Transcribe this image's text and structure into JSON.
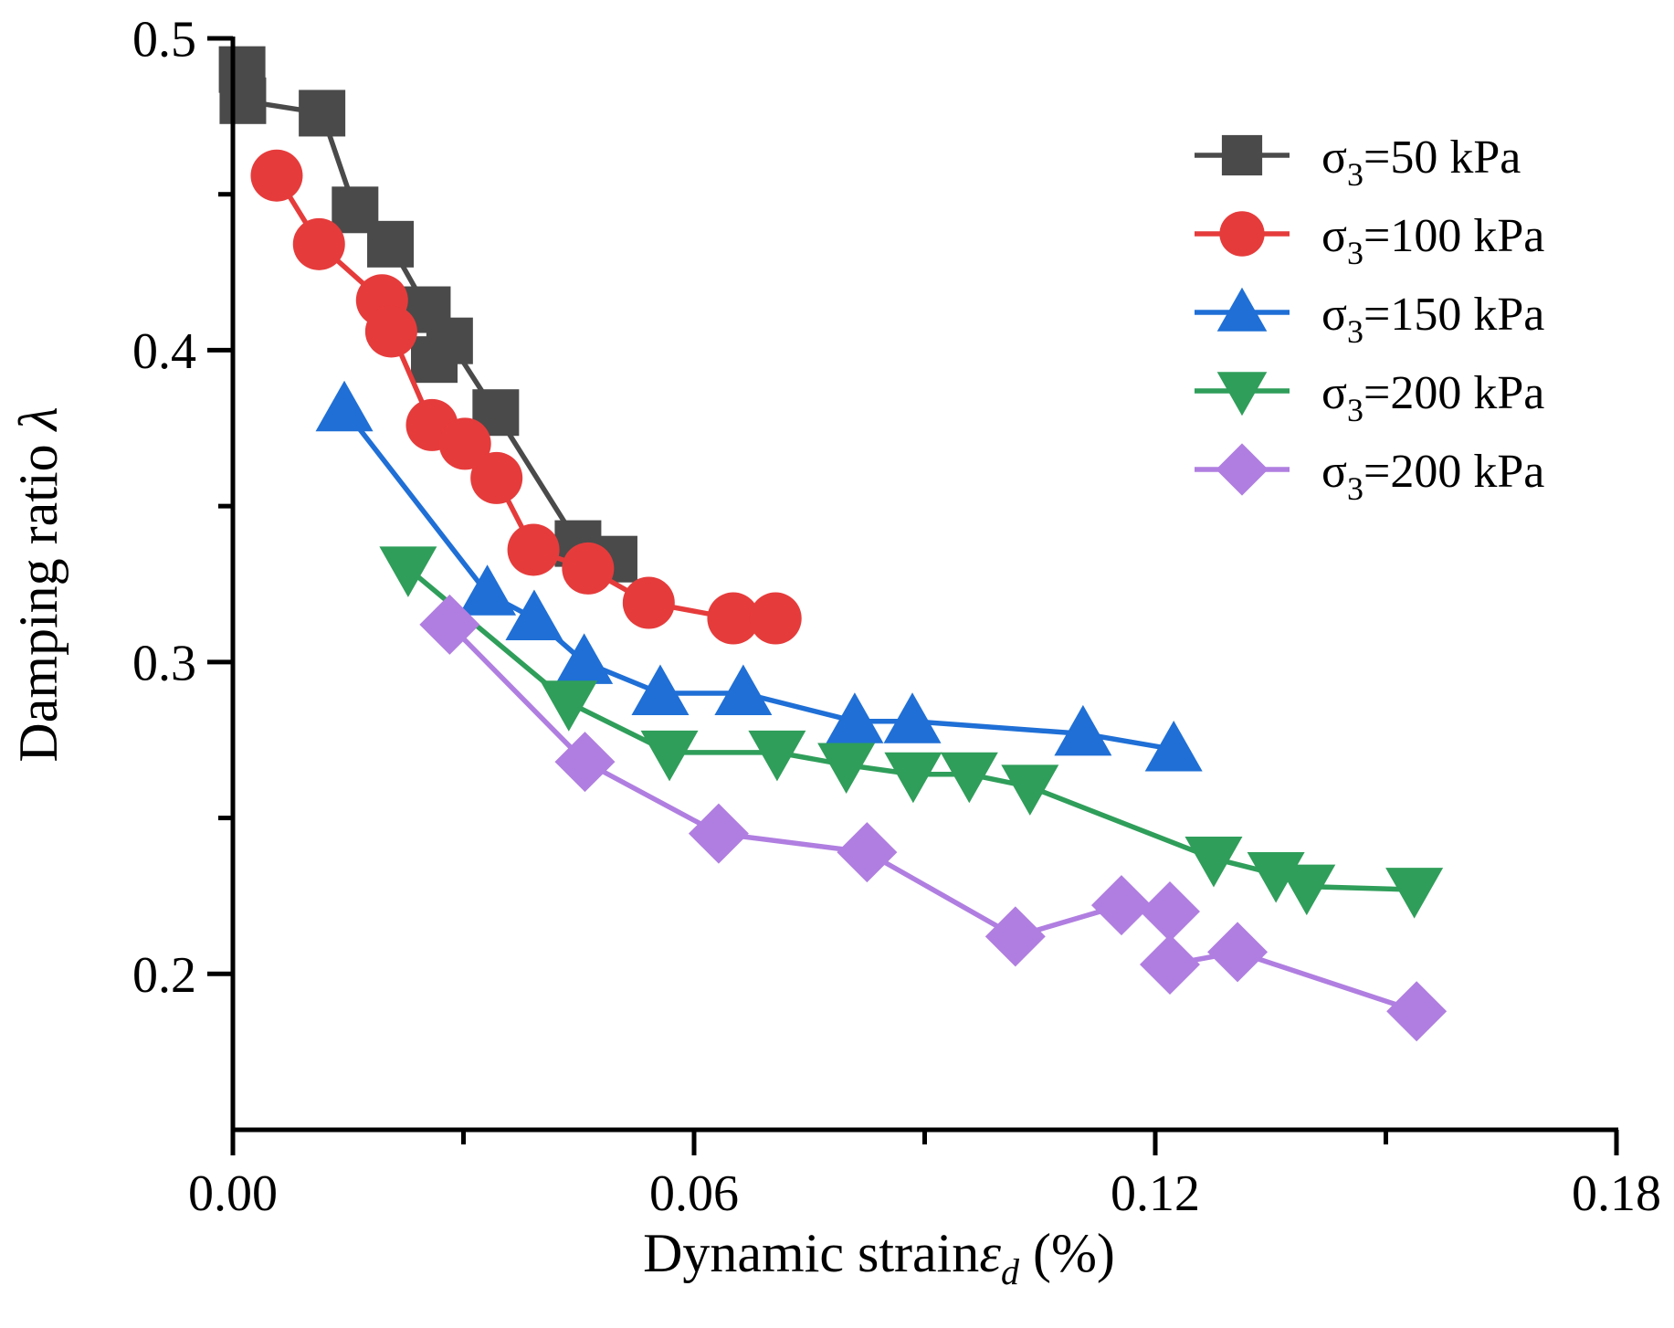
{
  "chart_data": {
    "type": "line",
    "title": "",
    "xlabel": {
      "main": "Dynamic strain",
      "symbol": "ε",
      "subscript": "d",
      "unit": " (%)"
    },
    "ylabel": {
      "main": "Damping ratio",
      "symbol": "λ"
    },
    "xlim": [
      0,
      0.18
    ],
    "ylim": [
      0.15,
      0.5
    ],
    "x_ticks": [
      {
        "value": 0.0,
        "label": "0.00"
      },
      {
        "value": 0.06,
        "label": "0.06"
      },
      {
        "value": 0.12,
        "label": "0.12"
      },
      {
        "value": 0.18,
        "label": "0.18"
      }
    ],
    "x_minor_ticks": [
      0.03,
      0.09,
      0.15
    ],
    "y_ticks": [
      {
        "value": 0.2,
        "label": "0.2"
      },
      {
        "value": 0.3,
        "label": "0.3"
      },
      {
        "value": 0.4,
        "label": "0.4"
      },
      {
        "value": 0.5,
        "label": "0.5"
      }
    ],
    "y_minor_ticks": [
      0.25,
      0.35,
      0.45
    ],
    "grid": false,
    "legend_position": "top-right",
    "series": [
      {
        "name": "σ3=50 kPa",
        "legend": {
          "prefix": "σ",
          "sub": "3",
          "suffix": "=50 kPa"
        },
        "marker": "square",
        "color": "#4a4a4a",
        "x": [
          0.0012,
          0.0013,
          0.0116,
          0.0159,
          0.0205,
          0.0253,
          0.0262,
          0.0282,
          0.0342,
          0.0449,
          0.0496
        ],
        "y": [
          0.49,
          0.48,
          0.476,
          0.445,
          0.434,
          0.413,
          0.397,
          0.403,
          0.38,
          0.338,
          0.333
        ]
      },
      {
        "name": "σ3=100 kPa",
        "legend": {
          "prefix": "σ",
          "sub": "3",
          "suffix": "=100 kPa"
        },
        "marker": "circle",
        "color": "#e63b3b",
        "x": [
          0.0057,
          0.0112,
          0.0194,
          0.0206,
          0.0259,
          0.0302,
          0.0343,
          0.0391,
          0.0462,
          0.0541,
          0.0651,
          0.0706
        ],
        "y": [
          0.456,
          0.434,
          0.416,
          0.406,
          0.376,
          0.37,
          0.359,
          0.336,
          0.33,
          0.319,
          0.314,
          0.314
        ]
      },
      {
        "name": "σ3=150 kPa",
        "legend": {
          "prefix": "σ",
          "sub": "3",
          "suffix": "=150 kPa"
        },
        "marker": "triangle-up",
        "color": "#1f6fd6",
        "x": [
          0.0145,
          0.0331,
          0.0392,
          0.0457,
          0.0556,
          0.0664,
          0.0809,
          0.0884,
          0.1106,
          0.1224
        ],
        "y": [
          0.381,
          0.322,
          0.314,
          0.3,
          0.29,
          0.29,
          0.281,
          0.281,
          0.277,
          0.272
        ]
      },
      {
        "name": "σ3=200 kPa",
        "legend": {
          "prefix": "σ",
          "sub": "3",
          "suffix": "=200 kPa"
        },
        "marker": "triangle-down",
        "color": "#2f9e5a",
        "x": [
          0.0228,
          0.0437,
          0.0568,
          0.0708,
          0.0798,
          0.0885,
          0.0958,
          0.1037,
          0.1276,
          0.1357,
          0.1397,
          0.1537
        ],
        "y": [
          0.33,
          0.287,
          0.271,
          0.271,
          0.267,
          0.264,
          0.264,
          0.26,
          0.237,
          0.232,
          0.228,
          0.227
        ]
      },
      {
        "name": "σ3=200 kPa",
        "legend": {
          "prefix": "σ",
          "sub": "3",
          "suffix": "=200 kPa"
        },
        "marker": "diamond",
        "color": "#b07ee0",
        "x": [
          0.0282,
          0.0458,
          0.0632,
          0.0825,
          0.1018,
          0.1156,
          0.1219,
          0.1219,
          0.1307,
          0.154
        ],
        "y": [
          0.312,
          0.268,
          0.245,
          0.239,
          0.212,
          0.222,
          0.22,
          0.203,
          0.207,
          0.188
        ]
      }
    ]
  }
}
